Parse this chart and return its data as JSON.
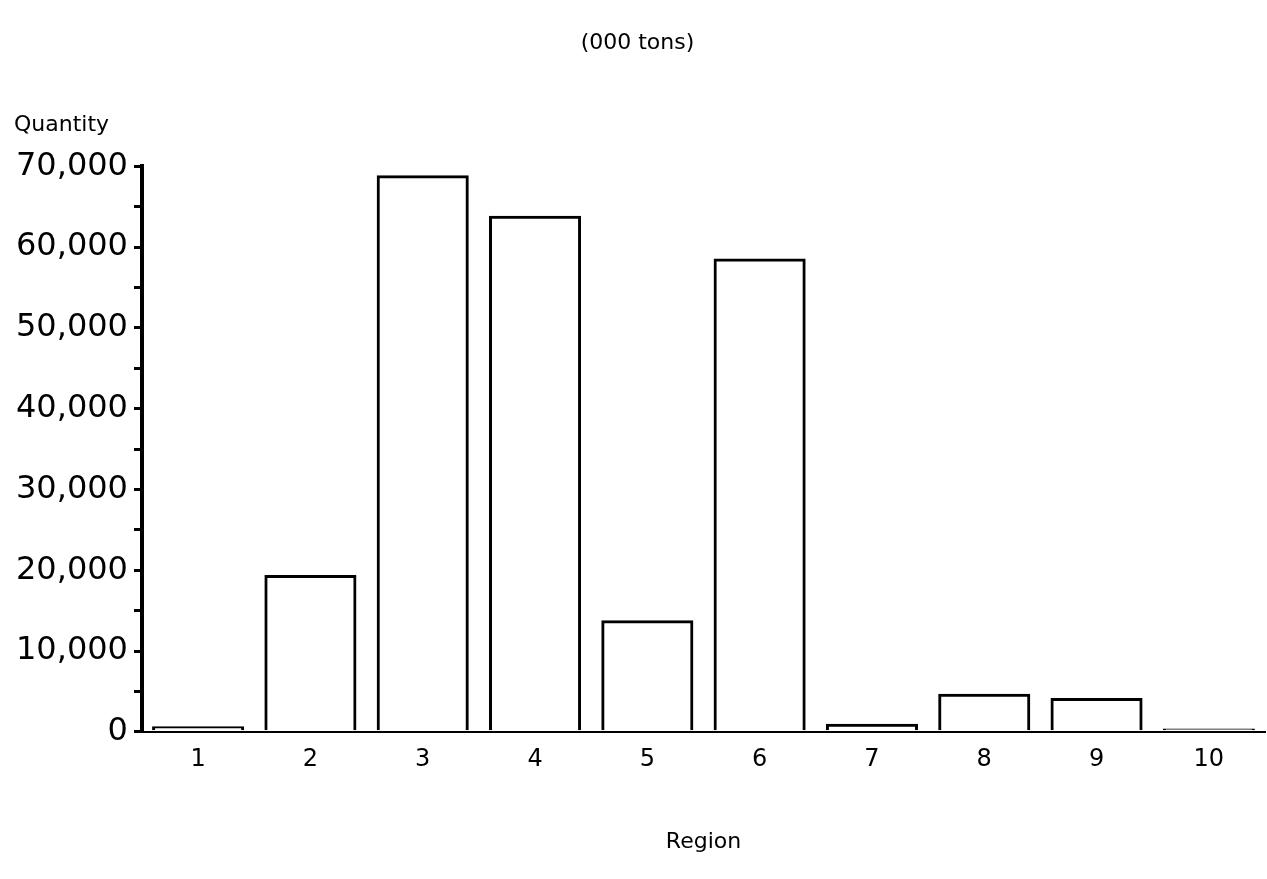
{
  "chart_data": {
    "type": "bar",
    "title": "(000 tons)",
    "xlabel": "Region",
    "ylabel": "Quantity",
    "categories": [
      "1",
      "2",
      "3",
      "4",
      "5",
      "6",
      "7",
      "8",
      "9",
      "10"
    ],
    "values": [
      700,
      19400,
      68900,
      63900,
      13800,
      58600,
      1000,
      4700,
      4200,
      400
    ],
    "color": "#000000",
    "ylim": [
      0,
      70000
    ],
    "yticks": [
      0,
      {
        "value": 5000,
        "label": null
      },
      {
        "value": 10000,
        "label": "10,000"
      },
      {
        "value": 15000,
        "label": null
      },
      {
        "value": 20000,
        "label": "20,000"
      },
      {
        "value": 25000,
        "label": null
      },
      {
        "value": 30000,
        "label": "30,000"
      },
      {
        "value": 35000,
        "label": null
      },
      {
        "value": 40000,
        "label": "40,000"
      },
      {
        "value": 45000,
        "label": null
      },
      {
        "value": 50000,
        "label": "50,000"
      },
      {
        "value": 55000,
        "label": null
      },
      {
        "value": 60000,
        "label": "60,000"
      },
      {
        "value": 65000,
        "label": null
      },
      {
        "value": 70000,
        "label": "70,000"
      }
    ],
    "grid": false,
    "legend": false
  }
}
